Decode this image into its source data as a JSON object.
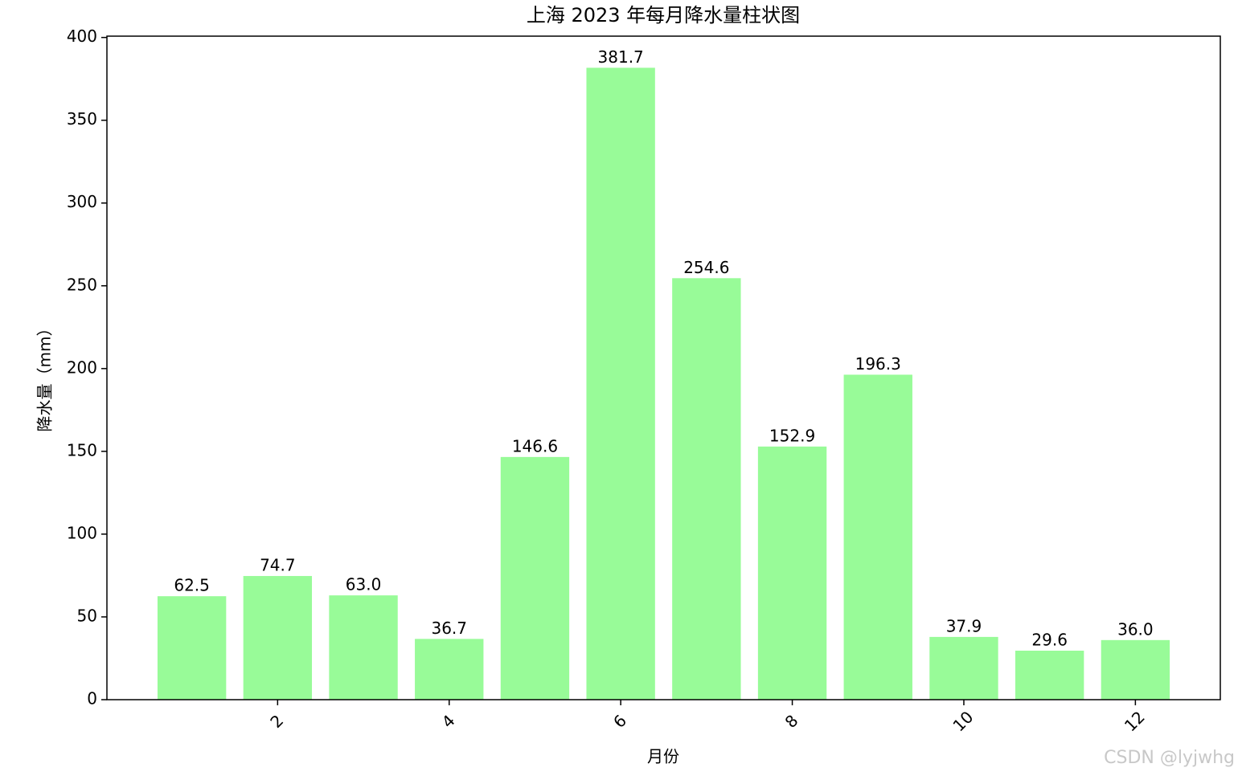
{
  "chart_data": {
    "type": "bar",
    "title": "上海 2023 年每月降水量柱状图",
    "x_label": "月份",
    "y_label": "降水量（mm）",
    "x": [
      1,
      2,
      3,
      4,
      5,
      6,
      7,
      8,
      9,
      10,
      11,
      12
    ],
    "values": [
      62.5,
      74.7,
      63.0,
      36.7,
      146.6,
      381.7,
      254.6,
      152.9,
      196.3,
      37.9,
      29.6,
      36.0
    ],
    "value_labels": [
      "62.5",
      "74.7",
      "63.0",
      "36.7",
      "146.6",
      "381.7",
      "254.6",
      "152.9",
      "196.3",
      "37.9",
      "29.6",
      "36.0"
    ],
    "bar_width": 0.8,
    "color": "#98fb98",
    "xlim": [
      0.01,
      12.99
    ],
    "xticks": [
      2,
      4,
      6,
      8,
      10,
      12
    ],
    "ylim": [
      0,
      400.8
    ],
    "yticks": [
      0,
      50,
      100,
      150,
      200,
      250,
      300,
      350,
      400
    ],
    "grid": false,
    "watermark": "CSDN @lyjwhg"
  }
}
